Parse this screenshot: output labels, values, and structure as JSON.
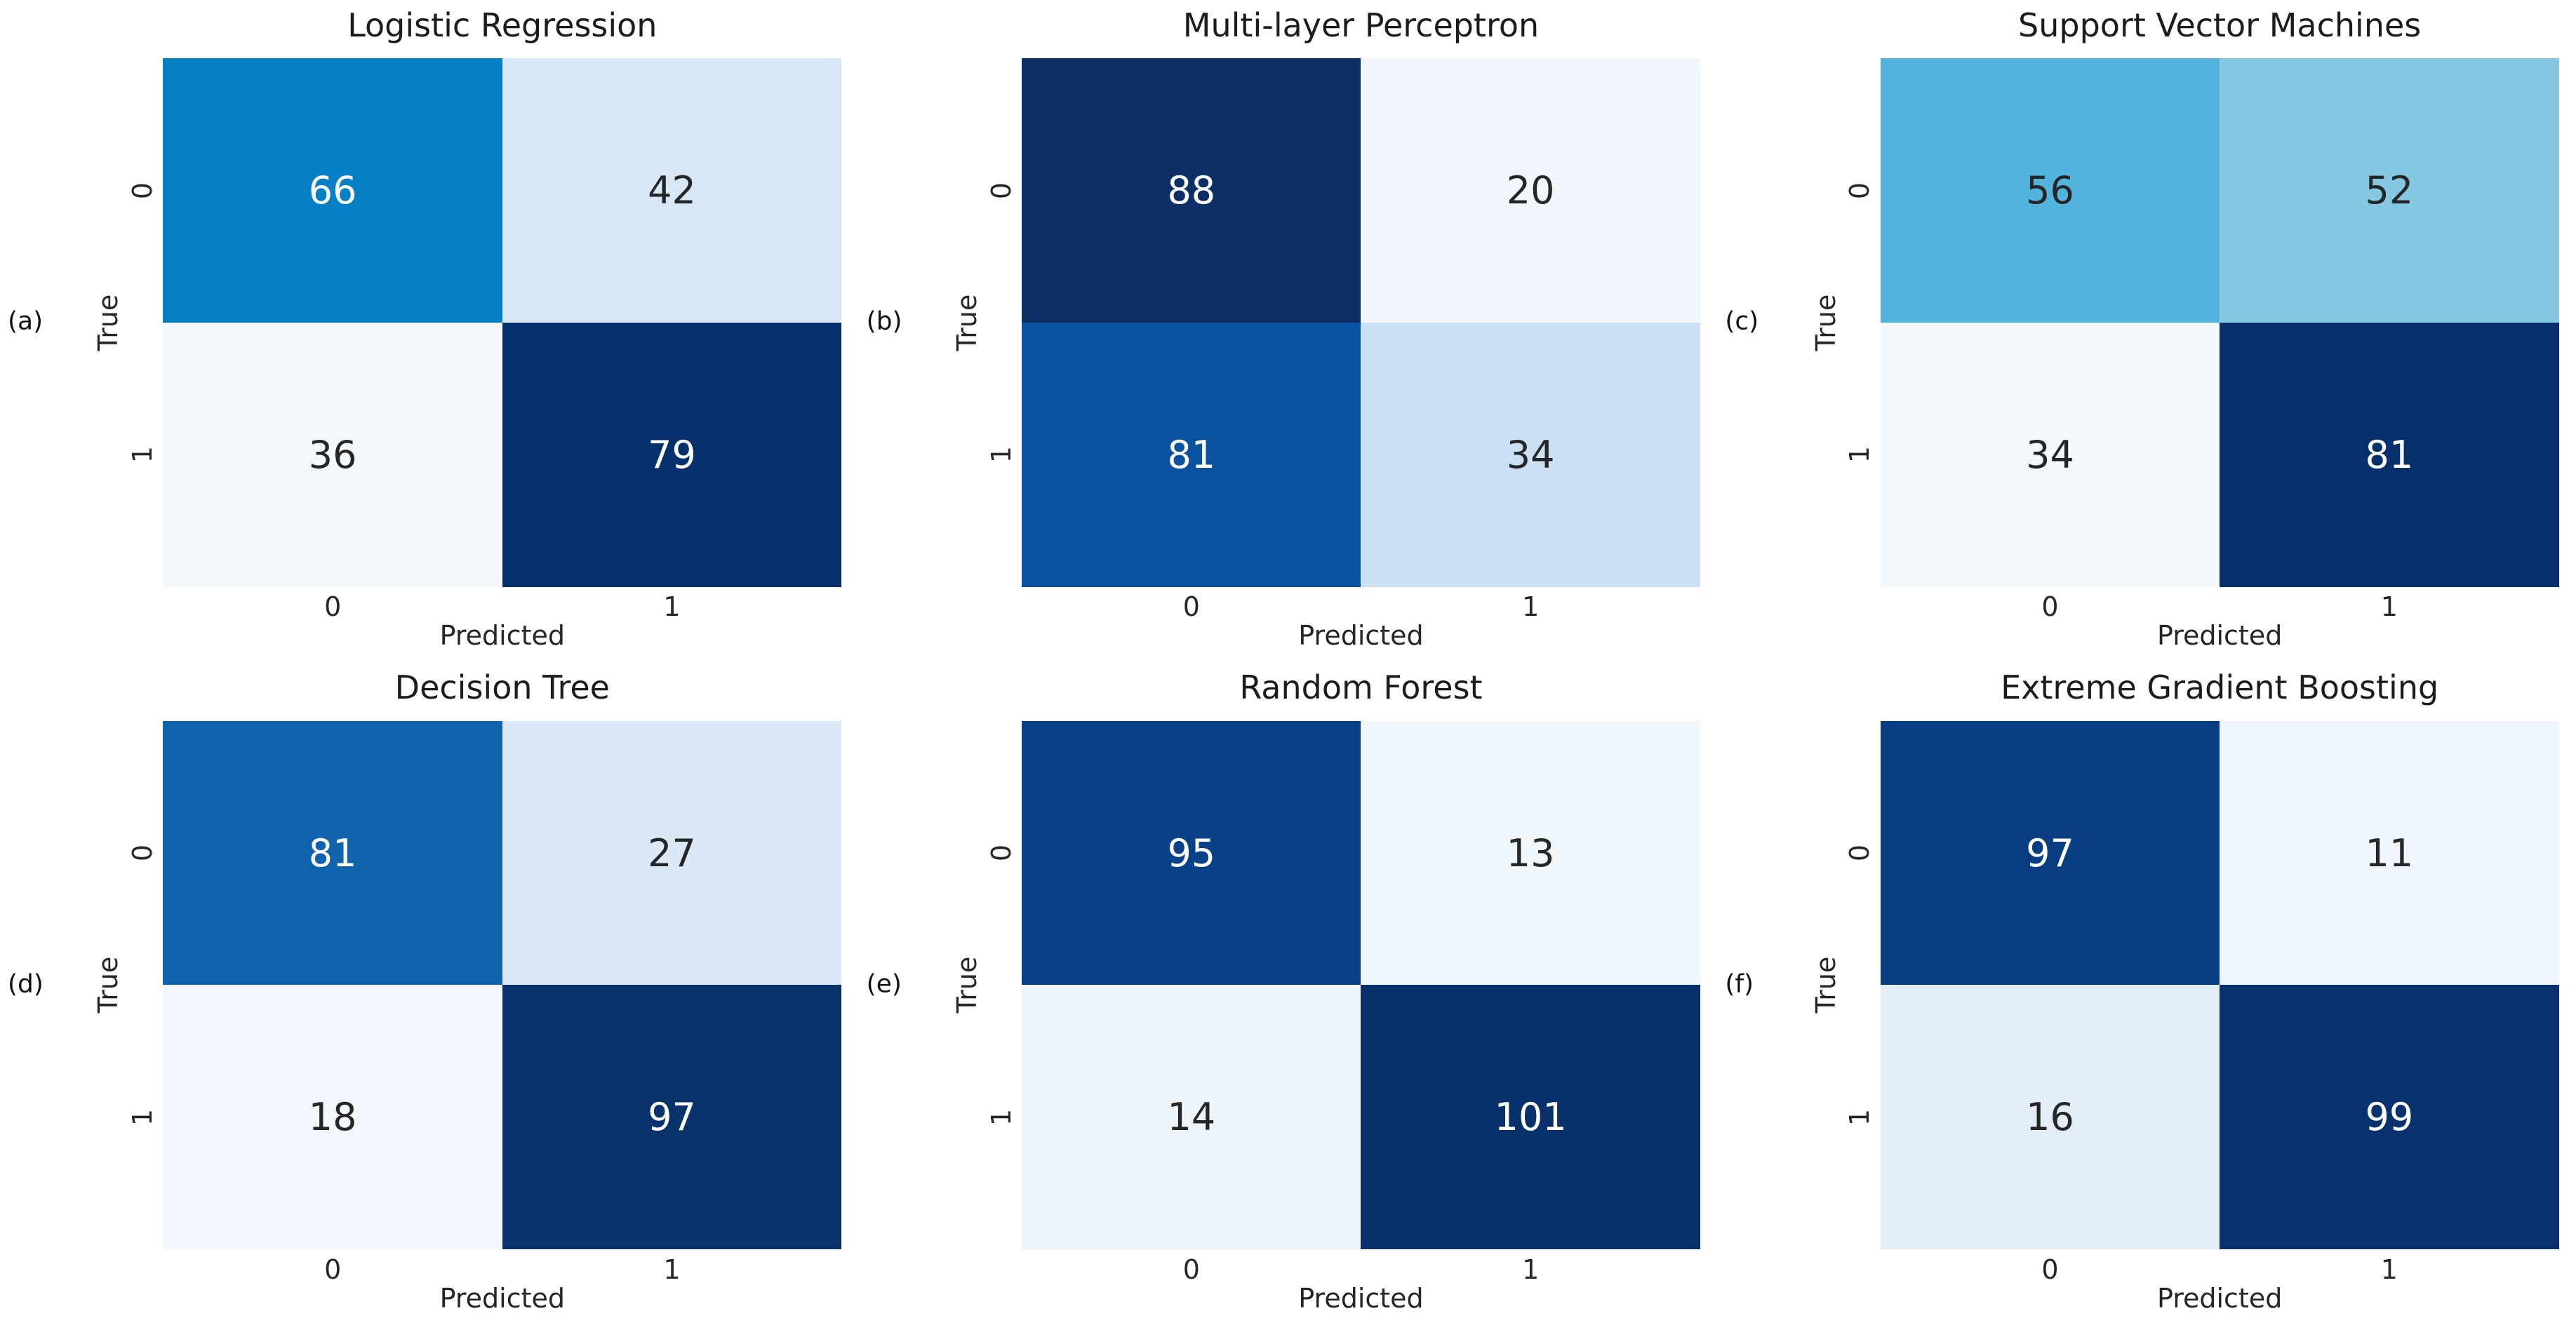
{
  "figure": {
    "background": "#ffffff",
    "colormap": "Blues",
    "rows": 2,
    "cols": 3
  },
  "chart_data": [
    {
      "type": "heatmap",
      "panel_letter": "(a)",
      "title": "Logistic Regression",
      "xlabel": "Predicted",
      "ylabel": "True",
      "x_ticks": [
        "0",
        "1"
      ],
      "y_ticks": [
        "0",
        "1"
      ],
      "matrix": [
        [
          66,
          42
        ],
        [
          36,
          79
        ]
      ],
      "cell_colors": [
        [
          "#0580c4",
          "#d8e7f6"
        ],
        [
          "#f4f9fd",
          "#05306c"
        ]
      ],
      "text_colors": [
        [
          "#ffffff",
          "#262626"
        ],
        [
          "#262626",
          "#ffffff"
        ]
      ]
    },
    {
      "type": "heatmap",
      "panel_letter": "(b)",
      "title": "Multi-layer Perceptron",
      "xlabel": "Predicted",
      "ylabel": "True",
      "x_ticks": [
        "0",
        "1"
      ],
      "y_ticks": [
        "0",
        "1"
      ],
      "matrix": [
        [
          88,
          20
        ],
        [
          81,
          34
        ]
      ],
      "cell_colors": [
        [
          "#0c2f66",
          "#f0f6fc"
        ],
        [
          "#0a519f",
          "#cbe0f4"
        ]
      ],
      "text_colors": [
        [
          "#ffffff",
          "#262626"
        ],
        [
          "#ffffff",
          "#262626"
        ]
      ]
    },
    {
      "type": "heatmap",
      "panel_letter": "(c)",
      "title": "Support Vector Machines",
      "xlabel": "Predicted",
      "ylabel": "True",
      "x_ticks": [
        "0",
        "1"
      ],
      "y_ticks": [
        "0",
        "1"
      ],
      "matrix": [
        [
          56,
          52
        ],
        [
          34,
          81
        ]
      ],
      "cell_colors": [
        [
          "#52b4dc",
          "#84c8e3"
        ],
        [
          "#f4f9fd",
          "#06306c"
        ]
      ],
      "text_colors": [
        [
          "#262626",
          "#262626"
        ],
        [
          "#262626",
          "#ffffff"
        ]
      ]
    },
    {
      "type": "heatmap",
      "panel_letter": "(d)",
      "title": "Decision Tree",
      "xlabel": "Predicted",
      "ylabel": "True",
      "x_ticks": [
        "0",
        "1"
      ],
      "y_ticks": [
        "0",
        "1"
      ],
      "matrix": [
        [
          81,
          27
        ],
        [
          18,
          97
        ]
      ],
      "cell_colors": [
        [
          "#0f63ad",
          "#dbe9f6"
        ],
        [
          "#f2f8fd",
          "#083269"
        ]
      ],
      "text_colors": [
        [
          "#ffffff",
          "#262626"
        ],
        [
          "#262626",
          "#ffffff"
        ]
      ]
    },
    {
      "type": "heatmap",
      "panel_letter": "(e)",
      "title": "Random Forest",
      "xlabel": "Predicted",
      "ylabel": "True",
      "x_ticks": [
        "0",
        "1"
      ],
      "y_ticks": [
        "0",
        "1"
      ],
      "matrix": [
        [
          95,
          13
        ],
        [
          14,
          101
        ]
      ],
      "cell_colors": [
        [
          "#084187",
          "#eff6fc"
        ],
        [
          "#edf5fb",
          "#08306b"
        ]
      ],
      "text_colors": [
        [
          "#ffffff",
          "#262626"
        ],
        [
          "#262626",
          "#ffffff"
        ]
      ]
    },
    {
      "type": "heatmap",
      "panel_letter": "(f)",
      "title": "Extreme Gradient Boosting",
      "xlabel": "Predicted",
      "ylabel": "True",
      "x_ticks": [
        "0",
        "1"
      ],
      "y_ticks": [
        "0",
        "1"
      ],
      "matrix": [
        [
          97,
          11
        ],
        [
          16,
          99
        ]
      ],
      "cell_colors": [
        [
          "#083d81",
          "#eef5fc"
        ],
        [
          "#e2edf8",
          "#08316e"
        ]
      ],
      "text_colors": [
        [
          "#ffffff",
          "#262626"
        ],
        [
          "#262626",
          "#ffffff"
        ]
      ]
    }
  ]
}
